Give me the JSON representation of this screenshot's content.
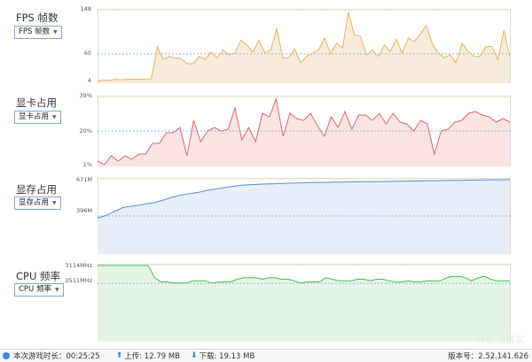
{
  "panels": [
    {
      "id": "fps",
      "label": "FPS 帧数",
      "dropdown": "FPS 帧数",
      "ticks": [
        "148",
        "60",
        "4"
      ],
      "top": 10,
      "height": 84,
      "fill": "#f7ebdb",
      "stroke": "#e8b25e",
      "ref": "#f0c070",
      "ymin": 4,
      "ymax": 148,
      "refline": 60,
      "values": [
        4,
        7,
        6,
        8,
        7,
        8,
        9,
        8,
        9,
        9,
        75,
        48,
        55,
        52,
        50,
        40,
        40,
        55,
        48,
        64,
        52,
        68,
        58,
        62,
        88,
        78,
        64,
        88,
        62,
        68,
        112,
        52,
        52,
        70,
        42,
        55,
        62,
        68,
        92,
        60,
        82,
        72,
        145,
        98,
        96,
        58,
        68,
        55,
        78,
        65,
        90,
        62,
        92,
        85,
        100,
        118,
        82,
        62,
        52,
        58,
        42,
        82,
        65,
        55,
        55,
        75,
        75,
        48,
        108,
        54
      ]
    },
    {
      "id": "gpu",
      "label": "显卡占用",
      "dropdown": "显卡占用",
      "ticks": [
        "39%",
        "20%",
        "1%"
      ],
      "top": 108,
      "height": 80,
      "fill": "#f9e3e3",
      "stroke": "#d96a6a",
      "ref": "#8fb6e0",
      "ymin": 1,
      "ymax": 39,
      "refline": 20,
      "values": [
        3,
        1,
        6,
        3,
        6,
        4,
        7,
        7,
        13,
        13,
        19,
        19,
        22,
        6,
        26,
        14,
        20,
        22,
        20,
        21,
        33,
        15,
        22,
        14,
        30,
        28,
        38,
        17,
        30,
        27,
        26,
        30,
        23,
        17,
        28,
        22,
        31,
        21,
        29,
        29,
        26,
        30,
        24,
        30,
        25,
        24,
        20,
        26,
        24,
        7,
        20,
        21,
        25,
        26,
        30,
        31,
        29,
        28,
        25,
        27,
        25
      ]
    },
    {
      "id": "vram",
      "label": "显存占用",
      "dropdown": "显存占用",
      "ticks": [
        "671M",
        "396M"
      ],
      "top": 201,
      "height": 86,
      "fill": "#e7eef8",
      "stroke": "#4f8fd0",
      "ref": "#8fb6e0",
      "ymin": 121,
      "ymax": 671,
      "refline": 396,
      "values": [
        380,
        400,
        430,
        460,
        470,
        478,
        490,
        500,
        520,
        540,
        555,
        565,
        575,
        590,
        600,
        610,
        620,
        628,
        632,
        636,
        638,
        640,
        642,
        645,
        646,
        648,
        650,
        650,
        652,
        653,
        654,
        655,
        656,
        656,
        657,
        658,
        659,
        660,
        661,
        662,
        663,
        664,
        665,
        666,
        667,
        668,
        669,
        670,
        670,
        671
      ]
    },
    {
      "id": "cpu",
      "label": "CPU 频率",
      "dropdown": "CPU 频率",
      "ticks": [
        "3114MHz",
        "2511MHz"
      ],
      "top": 298,
      "height": 88,
      "fill": "#e6f4e6",
      "stroke": "#4cb84c",
      "ref": "#8fb6e0",
      "ymin": 600,
      "ymax": 3114,
      "refline": 2511,
      "values": [
        3114,
        3114,
        3114,
        3114,
        3114,
        3114,
        3114,
        3114,
        3114,
        2700,
        2560,
        2560,
        2520,
        2520,
        2520,
        2600,
        2600,
        2600,
        2520,
        2550,
        2560,
        2560,
        2650,
        2700,
        2700,
        2700,
        2650,
        2700,
        2700,
        2650,
        2650,
        2600,
        2520,
        2560,
        2560,
        2560,
        2700,
        2650,
        2600,
        2600,
        2600,
        2650,
        2650,
        2600,
        2650,
        2650,
        2600,
        2550,
        2560,
        2600,
        2560,
        2560,
        2600,
        2600,
        2600,
        2700,
        2750,
        2750,
        2700,
        2600,
        2700,
        2750,
        2650,
        2600,
        2600,
        2600
      ]
    }
  ],
  "status": {
    "session_label": "本次游戏时长：00:25:25",
    "upload_label": "上传: 12.79 MB",
    "download_label": "下载: 19.13 MB",
    "version_label": "版本号：2.52.141.626"
  },
  "watermark": "什么值得买"
}
